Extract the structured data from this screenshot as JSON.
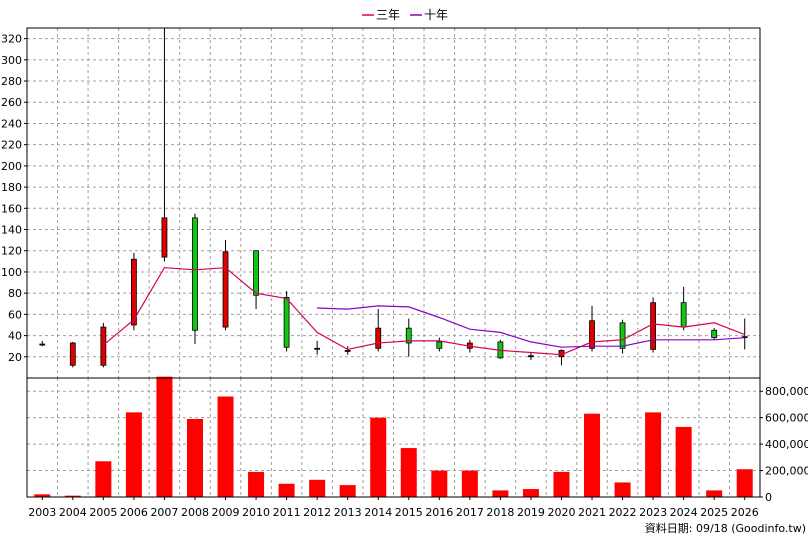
{
  "chart_data": {
    "type": "candlestick+bar",
    "legend": [
      {
        "label": "三年",
        "color": "#d6005a"
      },
      {
        "label": "十年",
        "color": "#8a00c8"
      }
    ],
    "years": [
      "2003",
      "2004",
      "2005",
      "2006",
      "2007",
      "2008",
      "2009",
      "2010",
      "2011",
      "2012",
      "2013",
      "2014",
      "2015",
      "2016",
      "2017",
      "2018",
      "2019",
      "2020",
      "2021",
      "2022",
      "2023",
      "2024",
      "2025",
      "2026"
    ],
    "price_axis": {
      "min": 0,
      "max": 330,
      "ticks": [
        20,
        40,
        60,
        80,
        100,
        120,
        140,
        160,
        180,
        200,
        220,
        240,
        260,
        280,
        300,
        320
      ]
    },
    "volume_axis": {
      "min": 0,
      "max": 900000,
      "ticks": [
        0,
        200000,
        400000,
        600000,
        800000
      ],
      "tick_labels": [
        "0",
        "200,000",
        "400,000",
        "600,000",
        "800,000"
      ]
    },
    "candles": [
      {
        "open": 32,
        "high": 35,
        "low": 30,
        "close": 32
      },
      {
        "open": 12,
        "high": 34,
        "low": 10,
        "close": 33
      },
      {
        "open": 12,
        "high": 52,
        "low": 10,
        "close": 48
      },
      {
        "open": 50,
        "high": 118,
        "low": 45,
        "close": 112
      },
      {
        "open": 114,
        "high": 330,
        "low": 110,
        "close": 151
      },
      {
        "open": 151,
        "high": 155,
        "low": 32,
        "close": 45
      },
      {
        "open": 48,
        "high": 130,
        "low": 45,
        "close": 119
      },
      {
        "open": 120,
        "high": 120,
        "low": 65,
        "close": 78
      },
      {
        "open": 76,
        "high": 82,
        "low": 25,
        "close": 29
      },
      {
        "open": 28,
        "high": 35,
        "low": 22,
        "close": 28
      },
      {
        "open": 26,
        "high": 30,
        "low": 22,
        "close": 26
      },
      {
        "open": 28,
        "high": 65,
        "low": 25,
        "close": 47
      },
      {
        "open": 47,
        "high": 56,
        "low": 20,
        "close": 33
      },
      {
        "open": 34,
        "high": 38,
        "low": 25,
        "close": 28
      },
      {
        "open": 28,
        "high": 36,
        "low": 24,
        "close": 33
      },
      {
        "open": 34,
        "high": 36,
        "low": 18,
        "close": 19
      },
      {
        "open": 21,
        "high": 24,
        "low": 17,
        "close": 21
      },
      {
        "open": 20,
        "high": 27,
        "low": 12,
        "close": 26
      },
      {
        "open": 28,
        "high": 68,
        "low": 25,
        "close": 54
      },
      {
        "open": 52,
        "high": 55,
        "low": 23,
        "close": 28
      },
      {
        "open": 27,
        "high": 76,
        "low": 24,
        "close": 71
      },
      {
        "open": 71,
        "high": 86,
        "low": 45,
        "close": 48
      },
      {
        "open": 45,
        "high": 47,
        "low": 36,
        "close": 38
      },
      {
        "open": 38,
        "high": 56,
        "low": 27,
        "close": 39
      }
    ],
    "series": [
      {
        "name": "三年",
        "color": "#d6005a",
        "values": [
          null,
          null,
          31,
          55,
          104,
          102,
          104,
          80,
          75,
          43,
          27,
          33,
          35,
          35,
          30,
          26,
          24,
          22,
          34,
          36,
          51,
          48,
          52,
          41
        ]
      },
      {
        "name": "十年",
        "color": "#8a00c8",
        "values": [
          null,
          null,
          null,
          null,
          null,
          null,
          null,
          null,
          null,
          66,
          65,
          68,
          67,
          57,
          46,
          43,
          34,
          29,
          30,
          30,
          36,
          36,
          36,
          38
        ]
      }
    ],
    "volume": [
      20000,
      10000,
      270000,
      640000,
      910000,
      590000,
      760000,
      190000,
      100000,
      130000,
      90000,
      600000,
      370000,
      200000,
      200000,
      50000,
      60000,
      190000,
      630000,
      110000,
      640000,
      530000,
      50000,
      210000
    ],
    "up_color": "#e00000",
    "down_color": "#10c810",
    "volume_color": "#ff0000",
    "footer": "資料日期: 09/18 (Goodinfo.tw)"
  }
}
